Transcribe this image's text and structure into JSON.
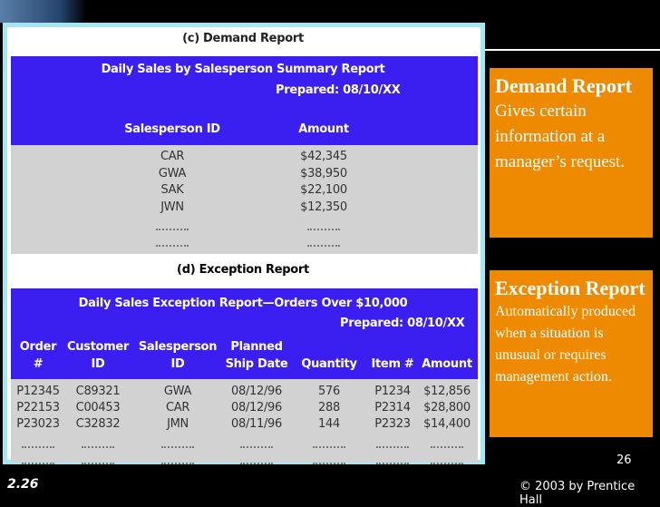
{
  "demand_report": {
    "heading": "(c) Demand Report",
    "title": "Daily Sales by Salesperson Summary Report",
    "prepared": "Prepared: 08/10/XX",
    "columns": [
      "Salesperson ID",
      "Amount"
    ],
    "rows": [
      [
        "CAR",
        "$42,345"
      ],
      [
        "GWA",
        "$38,950"
      ],
      [
        "SAK",
        "$22,100"
      ],
      [
        "JWN",
        "$12,350"
      ]
    ]
  },
  "exception_report": {
    "heading": "(d) Exception Report",
    "title": "Daily Sales Exception Report—Orders Over $10,000",
    "prepared": "Prepared: 08/10/XX",
    "columns": [
      [
        "Order",
        "#"
      ],
      [
        "Customer",
        "ID"
      ],
      [
        "Salesperson",
        "ID"
      ],
      [
        "Planned",
        "Ship Date"
      ],
      [
        "Quantity"
      ],
      [
        "Item #"
      ],
      [
        "Amount"
      ]
    ],
    "rows": [
      [
        "P12345",
        "C89321",
        "GWA",
        "08/12/96",
        "576",
        "P1234",
        "$12,856"
      ],
      [
        "P22153",
        "C00453",
        "CAR",
        "08/12/96",
        "288",
        "P2314",
        "$28,800"
      ],
      [
        "P23023",
        "C32832",
        "JMN",
        "08/11/96",
        "144",
        "P2323",
        "$14,400"
      ]
    ]
  },
  "callouts": [
    {
      "title": "Demand Report",
      "text": "Gives certain information at a manager’s request."
    },
    {
      "title": "Exception Report",
      "text": "Automatically produced when a situation is unusual or requires management action."
    }
  ],
  "footer": {
    "page_number": "26",
    "slide_label": "2.26",
    "copyright": "© 2003 by Prentice Hall"
  }
}
